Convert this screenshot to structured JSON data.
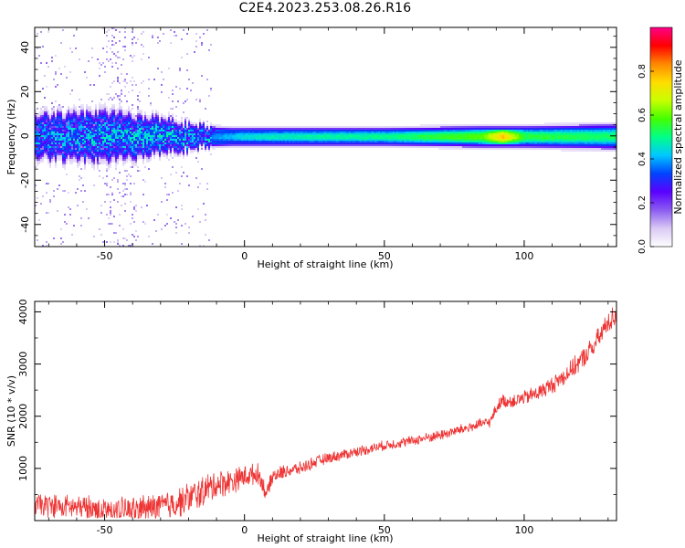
{
  "title": "C2E4.2023.253.08.26.R16",
  "colors": {
    "snr_line": "#ee3333",
    "colormap": [
      "#ffffff",
      "#d9c9f4",
      "#8a5cf0",
      "#5a00ff",
      "#0044ff",
      "#00c8ff",
      "#00ff88",
      "#44ff00",
      "#c8ff00",
      "#ffdd00",
      "#ff8800",
      "#ff0000",
      "#ff0088"
    ]
  },
  "chart_data": [
    {
      "type": "heatmap",
      "title": "",
      "xlabel": "Height of straight line (km)",
      "ylabel": "Frequency (Hz)",
      "xlim": [
        -75,
        133
      ],
      "ylim": [
        -50,
        49
      ],
      "xticks": [
        -50,
        0,
        50,
        100
      ],
      "yticks": [
        -40,
        -20,
        0,
        20,
        40
      ],
      "colorbar": {
        "label": "Normalized spectral amplitude",
        "range": [
          0,
          1
        ],
        "ticks": [
          0.0,
          0.2,
          0.4,
          0.6,
          0.8
        ]
      },
      "band": {
        "description_points_x": [
          -75,
          -50,
          -30,
          -15,
          -5,
          0,
          20,
          50,
          85,
          92,
          100,
          133
        ],
        "amplitude": [
          0.35,
          0.38,
          0.4,
          0.36,
          0.42,
          0.45,
          0.48,
          0.5,
          0.6,
          0.78,
          0.55,
          0.52
        ],
        "half_width_hz": [
          6.0,
          7.0,
          5.0,
          3.0,
          2.5,
          2.5,
          2.5,
          2.5,
          3.0,
          3.0,
          3.0,
          3.5
        ]
      },
      "grid": false
    },
    {
      "type": "line",
      "title": "",
      "xlabel": "Height of straight line (km)",
      "ylabel": "SNR (10 * v/v)",
      "xlim": [
        -75,
        133
      ],
      "ylim": [
        0,
        4200
      ],
      "xticks": [
        -50,
        0,
        50,
        100
      ],
      "yticks": [
        1000,
        2000,
        3000,
        4000
      ],
      "series": [
        {
          "x": [
            -75,
            -65,
            -55,
            -45,
            -35,
            -25,
            -15,
            -10,
            -5,
            0,
            5,
            8,
            10,
            15,
            20,
            25,
            30,
            40,
            50,
            60,
            70,
            80,
            88,
            90,
            92,
            95,
            100,
            105,
            110,
            115,
            120,
            125,
            130,
            133
          ],
          "y": [
            300,
            270,
            230,
            200,
            220,
            320,
            550,
            700,
            750,
            850,
            900,
            500,
            850,
            950,
            1000,
            1120,
            1200,
            1320,
            1440,
            1530,
            1640,
            1780,
            1900,
            2150,
            2300,
            2280,
            2350,
            2450,
            2600,
            2800,
            3050,
            3350,
            3800,
            3950
          ],
          "noise": [
            250,
            260,
            270,
            280,
            300,
            320,
            350,
            320,
            280,
            250,
            220,
            180,
            170,
            150,
            140,
            130,
            120,
            115,
            110,
            110,
            115,
            120,
            120,
            130,
            140,
            150,
            160,
            180,
            190,
            200,
            220,
            240,
            250,
            250
          ]
        }
      ],
      "grid": false
    }
  ]
}
